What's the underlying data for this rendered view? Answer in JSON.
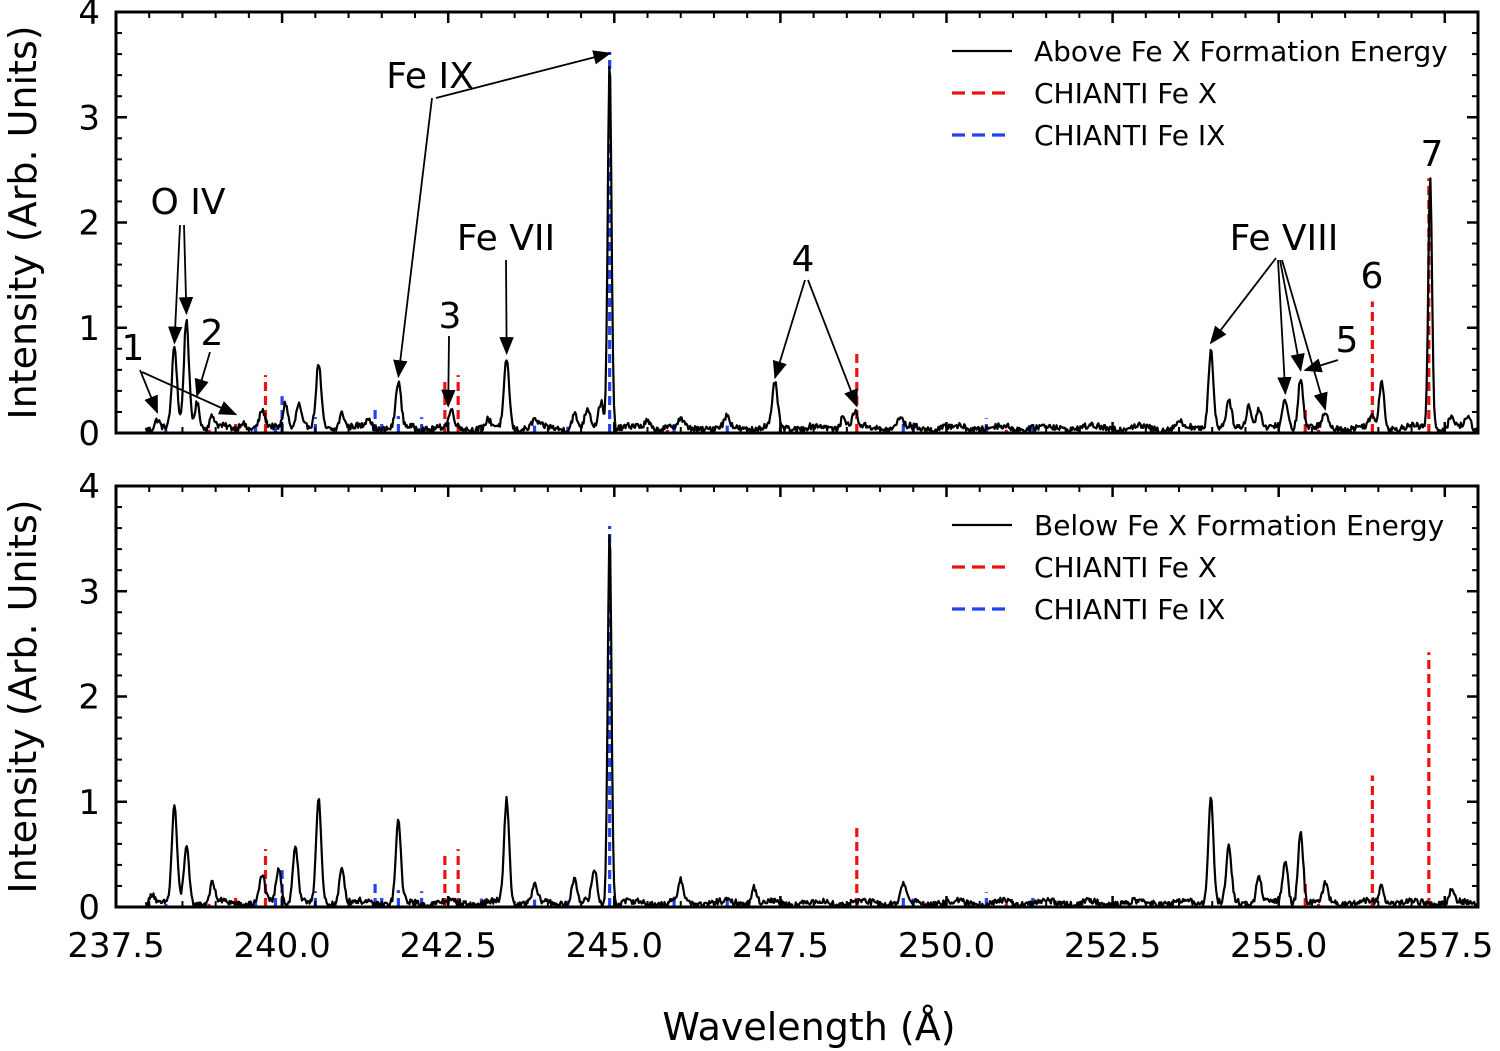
{
  "chart_data": [
    {
      "type": "line",
      "panel": "top",
      "ylabel": "Intensity (Arb. Units)",
      "xlabel": "",
      "xlim": [
        237.5,
        258.0
      ],
      "ylim": [
        0,
        4
      ],
      "xticks": [
        237.5,
        240.0,
        242.5,
        245.0,
        247.5,
        250.0,
        252.5,
        255.0,
        257.5
      ],
      "xtick_labels": [
        "237.5",
        "240.0",
        "242.5",
        "245.0",
        "247.5",
        "250.0",
        "252.5",
        "255.0",
        "257.5"
      ],
      "yticks": [
        0,
        1,
        2,
        3,
        4
      ],
      "ytick_labels": [
        "0",
        "1",
        "2",
        "3",
        "4"
      ],
      "legend_position": "top-right",
      "legend": [
        {
          "label": "Above Fe X Formation Energy",
          "color": "#000000",
          "style": "solid"
        },
        {
          "label": "CHIANTI Fe X",
          "color": "#ee1111",
          "style": "dashed"
        },
        {
          "label": "CHIANTI Fe IX",
          "color": "#2244ee",
          "style": "dashed"
        }
      ],
      "series": [
        {
          "name": "Above Fe X Formation Energy",
          "kind": "spectrum",
          "baseline": 0.05,
          "peaks": [
            {
              "x": 238.12,
              "y": 0.14
            },
            {
              "x": 238.38,
              "y": 0.8
            },
            {
              "x": 238.56,
              "y": 1.08
            },
            {
              "x": 238.72,
              "y": 0.3
            },
            {
              "x": 238.95,
              "y": 0.15
            },
            {
              "x": 239.4,
              "y": 0.12
            },
            {
              "x": 239.7,
              "y": 0.2
            },
            {
              "x": 240.05,
              "y": 0.3
            },
            {
              "x": 240.25,
              "y": 0.28
            },
            {
              "x": 240.55,
              "y": 0.65
            },
            {
              "x": 240.9,
              "y": 0.2
            },
            {
              "x": 241.3,
              "y": 0.15
            },
            {
              "x": 241.75,
              "y": 0.48
            },
            {
              "x": 242.55,
              "y": 0.2
            },
            {
              "x": 243.1,
              "y": 0.12
            },
            {
              "x": 243.38,
              "y": 0.7
            },
            {
              "x": 243.8,
              "y": 0.12
            },
            {
              "x": 244.4,
              "y": 0.18
            },
            {
              "x": 244.6,
              "y": 0.22
            },
            {
              "x": 244.8,
              "y": 0.3
            },
            {
              "x": 244.93,
              "y": 3.55
            },
            {
              "x": 245.5,
              "y": 0.12
            },
            {
              "x": 246.0,
              "y": 0.12
            },
            {
              "x": 246.7,
              "y": 0.15
            },
            {
              "x": 247.42,
              "y": 0.47
            },
            {
              "x": 248.45,
              "y": 0.18
            },
            {
              "x": 248.62,
              "y": 0.2
            },
            {
              "x": 249.3,
              "y": 0.15
            },
            {
              "x": 253.5,
              "y": 0.1
            },
            {
              "x": 253.98,
              "y": 0.8
            },
            {
              "x": 254.25,
              "y": 0.3
            },
            {
              "x": 254.55,
              "y": 0.28
            },
            {
              "x": 254.7,
              "y": 0.25
            },
            {
              "x": 255.1,
              "y": 0.32
            },
            {
              "x": 255.33,
              "y": 0.54
            },
            {
              "x": 255.7,
              "y": 0.17
            },
            {
              "x": 256.4,
              "y": 0.15
            },
            {
              "x": 256.55,
              "y": 0.5
            },
            {
              "x": 257.28,
              "y": 2.45
            },
            {
              "x": 257.6,
              "y": 0.15
            },
            {
              "x": 257.85,
              "y": 0.15
            }
          ]
        },
        {
          "name": "CHIANTI Fe X",
          "kind": "sticks",
          "lines": [
            {
              "x": 238.0,
              "y": 0.02
            },
            {
              "x": 238.9,
              "y": 0.03
            },
            {
              "x": 239.3,
              "y": 0.12
            },
            {
              "x": 239.75,
              "y": 0.55
            },
            {
              "x": 240.8,
              "y": 0.03
            },
            {
              "x": 242.45,
              "y": 0.5
            },
            {
              "x": 242.65,
              "y": 0.55
            },
            {
              "x": 245.8,
              "y": 0.03
            },
            {
              "x": 248.65,
              "y": 0.76
            },
            {
              "x": 249.7,
              "y": 0.04
            },
            {
              "x": 250.9,
              "y": 0.03
            },
            {
              "x": 252.0,
              "y": 0.04
            },
            {
              "x": 255.4,
              "y": 0.24
            },
            {
              "x": 255.6,
              "y": 0.03
            },
            {
              "x": 256.41,
              "y": 1.25
            },
            {
              "x": 257.26,
              "y": 2.42
            }
          ]
        },
        {
          "name": "CHIANTI Fe IX",
          "kind": "sticks",
          "lines": [
            {
              "x": 238.25,
              "y": 0.03
            },
            {
              "x": 239.6,
              "y": 0.07
            },
            {
              "x": 239.9,
              "y": 0.12
            },
            {
              "x": 240.0,
              "y": 0.35
            },
            {
              "x": 240.5,
              "y": 0.15
            },
            {
              "x": 241.4,
              "y": 0.22
            },
            {
              "x": 241.5,
              "y": 0.12
            },
            {
              "x": 241.75,
              "y": 0.16
            },
            {
              "x": 242.1,
              "y": 0.15
            },
            {
              "x": 243.0,
              "y": 0.08
            },
            {
              "x": 243.8,
              "y": 0.07
            },
            {
              "x": 244.3,
              "y": 0.06
            },
            {
              "x": 244.93,
              "y": 3.62
            },
            {
              "x": 245.9,
              "y": 0.1
            },
            {
              "x": 246.7,
              "y": 0.07
            },
            {
              "x": 247.5,
              "y": 0.05
            },
            {
              "x": 249.35,
              "y": 0.12
            },
            {
              "x": 249.5,
              "y": 0.08
            },
            {
              "x": 250.6,
              "y": 0.14
            },
            {
              "x": 251.3,
              "y": 0.1
            },
            {
              "x": 253.1,
              "y": 0.04
            }
          ]
        }
      ],
      "annotations": [
        {
          "text": "1",
          "points_to": [
            238.12,
            239.3
          ]
        },
        {
          "text": "O IV",
          "points_to": [
            238.38,
            238.56
          ]
        },
        {
          "text": "2",
          "points_to": [
            238.72
          ]
        },
        {
          "text": "Fe IX",
          "points_to": [
            241.75,
            244.93
          ]
        },
        {
          "text": "3",
          "points_to": [
            242.5
          ]
        },
        {
          "text": "Fe VII",
          "points_to": [
            243.38
          ]
        },
        {
          "text": "4",
          "points_to": [
            247.42,
            248.65
          ]
        },
        {
          "text": "Fe VIII",
          "points_to": [
            253.98,
            255.1,
            255.33,
            255.7
          ]
        },
        {
          "text": "5",
          "points_to": [
            255.4
          ]
        },
        {
          "text": "6",
          "points_to": [
            256.41
          ]
        },
        {
          "text": "7",
          "points_to": [
            257.28
          ]
        }
      ]
    },
    {
      "type": "line",
      "panel": "bottom",
      "ylabel": "Intensity (Arb. Units)",
      "xlabel": "Wavelength (Å)",
      "xlim": [
        237.5,
        258.0
      ],
      "ylim": [
        0,
        4
      ],
      "xticks": [
        237.5,
        240.0,
        242.5,
        245.0,
        247.5,
        250.0,
        252.5,
        255.0,
        257.5
      ],
      "xtick_labels": [
        "237.5",
        "240.0",
        "242.5",
        "245.0",
        "247.5",
        "250.0",
        "252.5",
        "255.0",
        "257.5"
      ],
      "yticks": [
        0,
        1,
        2,
        3,
        4
      ],
      "ytick_labels": [
        "0",
        "1",
        "2",
        "3",
        "4"
      ],
      "legend_position": "top-right",
      "legend": [
        {
          "label": "Below Fe X Formation Energy",
          "color": "#000000",
          "style": "solid"
        },
        {
          "label": "CHIANTI Fe X",
          "color": "#ee1111",
          "style": "dashed"
        },
        {
          "label": "CHIANTI Fe IX",
          "color": "#2244ee",
          "style": "dashed"
        }
      ],
      "series": [
        {
          "name": "Below Fe X Formation Energy",
          "kind": "spectrum",
          "baseline": 0.04,
          "peaks": [
            {
              "x": 238.05,
              "y": 0.15
            },
            {
              "x": 238.38,
              "y": 0.95
            },
            {
              "x": 238.56,
              "y": 0.58
            },
            {
              "x": 238.95,
              "y": 0.22
            },
            {
              "x": 239.7,
              "y": 0.3
            },
            {
              "x": 239.95,
              "y": 0.38
            },
            {
              "x": 240.2,
              "y": 0.6
            },
            {
              "x": 240.55,
              "y": 1.0
            },
            {
              "x": 240.9,
              "y": 0.38
            },
            {
              "x": 241.75,
              "y": 0.8
            },
            {
              "x": 243.38,
              "y": 1.02
            },
            {
              "x": 243.8,
              "y": 0.2
            },
            {
              "x": 244.4,
              "y": 0.28
            },
            {
              "x": 244.7,
              "y": 0.35
            },
            {
              "x": 244.93,
              "y": 3.6
            },
            {
              "x": 246.0,
              "y": 0.25
            },
            {
              "x": 247.1,
              "y": 0.2
            },
            {
              "x": 249.35,
              "y": 0.22
            },
            {
              "x": 253.98,
              "y": 1.07
            },
            {
              "x": 254.25,
              "y": 0.55
            },
            {
              "x": 254.7,
              "y": 0.3
            },
            {
              "x": 255.1,
              "y": 0.45
            },
            {
              "x": 255.33,
              "y": 0.75
            },
            {
              "x": 255.7,
              "y": 0.2
            },
            {
              "x": 256.55,
              "y": 0.2
            },
            {
              "x": 257.6,
              "y": 0.15
            }
          ]
        },
        {
          "name": "CHIANTI Fe X",
          "kind": "sticks",
          "lines": [
            {
              "x": 238.0,
              "y": 0.02
            },
            {
              "x": 238.9,
              "y": 0.03
            },
            {
              "x": 239.3,
              "y": 0.12
            },
            {
              "x": 239.75,
              "y": 0.55
            },
            {
              "x": 240.8,
              "y": 0.03
            },
            {
              "x": 242.45,
              "y": 0.5
            },
            {
              "x": 242.65,
              "y": 0.55
            },
            {
              "x": 245.8,
              "y": 0.03
            },
            {
              "x": 248.65,
              "y": 0.76
            },
            {
              "x": 249.7,
              "y": 0.04
            },
            {
              "x": 250.9,
              "y": 0.03
            },
            {
              "x": 252.0,
              "y": 0.04
            },
            {
              "x": 255.4,
              "y": 0.24
            },
            {
              "x": 255.6,
              "y": 0.03
            },
            {
              "x": 256.41,
              "y": 1.25
            },
            {
              "x": 257.26,
              "y": 2.42
            }
          ]
        },
        {
          "name": "CHIANTI Fe IX",
          "kind": "sticks",
          "lines": [
            {
              "x": 238.25,
              "y": 0.03
            },
            {
              "x": 239.6,
              "y": 0.07
            },
            {
              "x": 239.9,
              "y": 0.12
            },
            {
              "x": 240.0,
              "y": 0.35
            },
            {
              "x": 240.5,
              "y": 0.15
            },
            {
              "x": 241.4,
              "y": 0.22
            },
            {
              "x": 241.5,
              "y": 0.12
            },
            {
              "x": 241.75,
              "y": 0.16
            },
            {
              "x": 242.1,
              "y": 0.15
            },
            {
              "x": 243.0,
              "y": 0.08
            },
            {
              "x": 243.8,
              "y": 0.07
            },
            {
              "x": 244.3,
              "y": 0.06
            },
            {
              "x": 244.93,
              "y": 3.62
            },
            {
              "x": 245.9,
              "y": 0.1
            },
            {
              "x": 246.7,
              "y": 0.07
            },
            {
              "x": 247.5,
              "y": 0.05
            },
            {
              "x": 249.35,
              "y": 0.12
            },
            {
              "x": 249.5,
              "y": 0.08
            },
            {
              "x": 250.6,
              "y": 0.14
            },
            {
              "x": 251.3,
              "y": 0.1
            },
            {
              "x": 253.1,
              "y": 0.04
            }
          ]
        }
      ],
      "annotations": []
    }
  ]
}
